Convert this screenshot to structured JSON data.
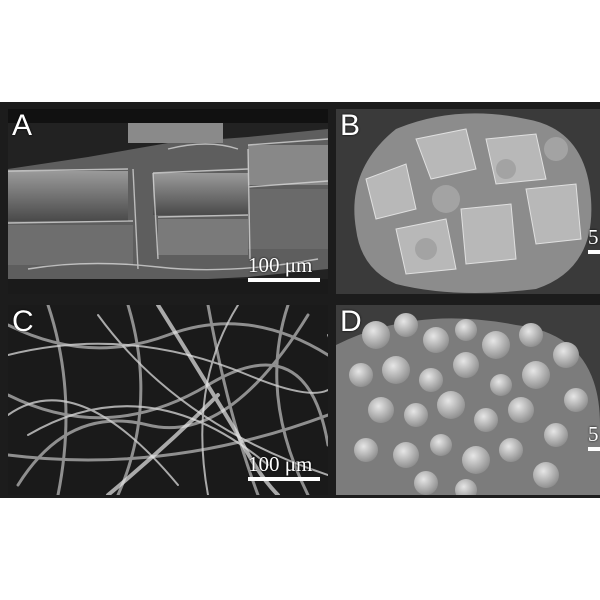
{
  "panels": {
    "a": {
      "letter": "A",
      "scale_label": "100 μm"
    },
    "b": {
      "letter": "B",
      "scale_label": "5"
    },
    "c": {
      "letter": "C",
      "scale_label": "100 μm"
    },
    "d": {
      "letter": "D",
      "scale_label": "5"
    }
  }
}
